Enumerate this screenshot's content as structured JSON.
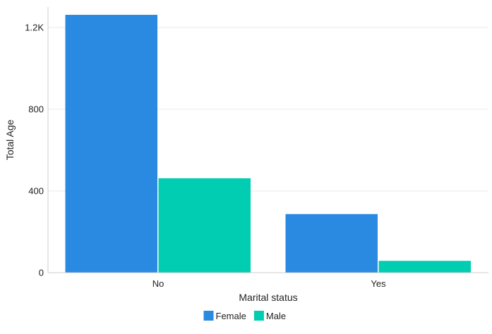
{
  "chart_data": {
    "type": "bar",
    "title": "",
    "xlabel": "Marital status",
    "ylabel": "Total Age",
    "categories": [
      "No",
      "Yes"
    ],
    "series": [
      {
        "name": "Female",
        "color": "#2a8ae2",
        "values": [
          1262,
          287
        ]
      },
      {
        "name": "Male",
        "color": "#00cdb1",
        "values": [
          462,
          58
        ]
      }
    ],
    "ylim": [
      0,
      1300
    ],
    "yticks": [
      {
        "value": 0,
        "label": "0"
      },
      {
        "value": 400,
        "label": "400"
      },
      {
        "value": 800,
        "label": "800"
      },
      {
        "value": 1200,
        "label": "1.2K"
      }
    ],
    "grid": true,
    "legend_position": "bottom-center"
  }
}
